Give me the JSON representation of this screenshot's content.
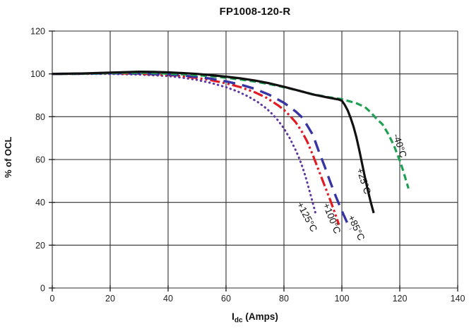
{
  "chart_data": {
    "type": "line",
    "title": "FP1008-120-R",
    "ylabel": "% of OCL",
    "xlabel_main": "I",
    "xlabel_sub": "dc",
    "xlabel_rest": " (Amps)",
    "xlim": [
      0,
      140
    ],
    "ylim": [
      0,
      120
    ],
    "xticks": [
      0,
      20,
      40,
      60,
      80,
      100,
      120,
      140
    ],
    "yticks": [
      0,
      20,
      40,
      60,
      80,
      100,
      120
    ],
    "grid": true,
    "grid_color": "#2e2e2e",
    "axis_color": "#1a1a1a",
    "tick_label_color": "#222222",
    "series": [
      {
        "id": "plus125c",
        "name": "+125°C",
        "color": "#5e35a1",
        "style": "dotted",
        "dash": "0.6 5.6",
        "linecap": "round",
        "width": 3,
        "label": {
          "text": "+125°C",
          "x": 87,
          "y": 32.5,
          "rot": 62
        },
        "points": [
          [
            0,
            100
          ],
          [
            10,
            100
          ],
          [
            20,
            100
          ],
          [
            30,
            99.7
          ],
          [
            40,
            99
          ],
          [
            45,
            98.2
          ],
          [
            50,
            97.2
          ],
          [
            55,
            95.7
          ],
          [
            60,
            93.8
          ],
          [
            64,
            91.8
          ],
          [
            68,
            89.2
          ],
          [
            71,
            86.8
          ],
          [
            74,
            83.8
          ],
          [
            76,
            81.2
          ],
          [
            78,
            78.2
          ],
          [
            80,
            74.5
          ],
          [
            82,
            70
          ],
          [
            84,
            64.5
          ],
          [
            85,
            61.5
          ],
          [
            86,
            58
          ],
          [
            87,
            54
          ],
          [
            88,
            49.5
          ],
          [
            89,
            44.5
          ],
          [
            90,
            39.5
          ],
          [
            91,
            34.5
          ]
        ]
      },
      {
        "id": "plus100c",
        "name": "+100°C",
        "color": "#e01b24",
        "style": "dash-dot-dot",
        "dash": "14 4 3 4 3 4",
        "linecap": "butt",
        "width": 3.2,
        "label": {
          "text": "+100°C",
          "x": 95.5,
          "y": 32,
          "rot": 68
        },
        "points": [
          [
            0,
            100
          ],
          [
            10,
            100.1
          ],
          [
            20,
            100.3
          ],
          [
            30,
            100.1
          ],
          [
            40,
            99.5
          ],
          [
            45,
            98.9
          ],
          [
            50,
            98.1
          ],
          [
            55,
            97
          ],
          [
            60,
            95.6
          ],
          [
            65,
            93.8
          ],
          [
            70,
            91.4
          ],
          [
            74,
            88.8
          ],
          [
            78,
            85.3
          ],
          [
            80,
            83.2
          ],
          [
            82,
            80.5
          ],
          [
            84,
            77.5
          ],
          [
            86,
            73.5
          ],
          [
            88,
            68.5
          ],
          [
            90,
            62
          ],
          [
            92,
            55
          ],
          [
            94,
            48
          ],
          [
            96,
            41
          ],
          [
            98,
            33.5
          ],
          [
            99,
            29.5
          ]
        ]
      },
      {
        "id": "plus85c",
        "name": "+85°C",
        "color": "#3734a3",
        "style": "long-dash",
        "dash": "17 10",
        "linecap": "butt",
        "width": 3.4,
        "label": {
          "text": "+85°C",
          "x": 104,
          "y": 27.5,
          "rot": 65
        },
        "points": [
          [
            0,
            100
          ],
          [
            10,
            100.1
          ],
          [
            20,
            100.3
          ],
          [
            30,
            100.2
          ],
          [
            40,
            99.7
          ],
          [
            45,
            99.2
          ],
          [
            50,
            98.6
          ],
          [
            55,
            97.7
          ],
          [
            60,
            96.5
          ],
          [
            65,
            95
          ],
          [
            70,
            93
          ],
          [
            75,
            90.2
          ],
          [
            80,
            86.5
          ],
          [
            84,
            82.5
          ],
          [
            86,
            80
          ],
          [
            88,
            76
          ],
          [
            90,
            71.5
          ],
          [
            92,
            64
          ],
          [
            94,
            57
          ],
          [
            96,
            49.5
          ],
          [
            98,
            42.5
          ],
          [
            100,
            36
          ],
          [
            102,
            30
          ],
          [
            103,
            27.5
          ]
        ]
      },
      {
        "id": "minus40c",
        "name": "-40°C",
        "color": "#20a055",
        "style": "dashed",
        "dash": "9 5",
        "linecap": "butt",
        "width": 3.2,
        "label": {
          "text": "-40°C",
          "x": 119,
          "y": 66,
          "rot": 72
        },
        "points": [
          [
            0,
            100
          ],
          [
            5,
            100
          ],
          [
            10,
            100.1
          ],
          [
            15,
            100.2
          ],
          [
            20,
            100.4
          ],
          [
            25,
            100.5
          ],
          [
            30,
            100.5
          ],
          [
            35,
            100.4
          ],
          [
            40,
            100.1
          ],
          [
            45,
            99.8
          ],
          [
            50,
            99.4
          ],
          [
            55,
            98.9
          ],
          [
            60,
            98.2
          ],
          [
            65,
            97.4
          ],
          [
            70,
            96.4
          ],
          [
            75,
            95.2
          ],
          [
            80,
            93.8
          ],
          [
            85,
            92.2
          ],
          [
            90,
            90.5
          ],
          [
            95,
            89.2
          ],
          [
            100,
            88.2
          ],
          [
            105,
            86.3
          ],
          [
            108,
            84.5
          ],
          [
            110,
            82
          ],
          [
            112,
            79
          ],
          [
            114,
            76.5
          ],
          [
            116,
            72
          ],
          [
            118,
            66.5
          ],
          [
            120,
            59.5
          ],
          [
            121,
            55.5
          ],
          [
            122,
            51
          ],
          [
            123,
            46.5
          ]
        ]
      },
      {
        "id": "plus25c",
        "name": "+25°C",
        "color": "#111111",
        "style": "solid",
        "dash": "",
        "linecap": "butt",
        "width": 3.2,
        "label": {
          "text": "+25°C",
          "x": 106.5,
          "y": 49.5,
          "rot": 72
        },
        "points": [
          [
            0,
            100
          ],
          [
            5,
            100.1
          ],
          [
            10,
            100.2
          ],
          [
            15,
            100.4
          ],
          [
            20,
            100.6
          ],
          [
            25,
            100.8
          ],
          [
            30,
            101
          ],
          [
            35,
            100.9
          ],
          [
            40,
            100.7
          ],
          [
            45,
            100.4
          ],
          [
            50,
            100
          ],
          [
            55,
            99.4
          ],
          [
            60,
            98.7
          ],
          [
            65,
            97.9
          ],
          [
            70,
            96.9
          ],
          [
            75,
            95.6
          ],
          [
            80,
            94
          ],
          [
            85,
            92.2
          ],
          [
            90,
            90.4
          ],
          [
            95,
            89
          ],
          [
            99,
            88
          ],
          [
            100,
            87.5
          ],
          [
            101,
            85.5
          ],
          [
            102,
            83
          ],
          [
            103,
            79.5
          ],
          [
            104,
            75.5
          ],
          [
            105,
            70.5
          ],
          [
            106,
            64.5
          ],
          [
            107,
            58
          ],
          [
            108,
            51.5
          ],
          [
            109,
            45.5
          ],
          [
            110,
            40
          ],
          [
            111,
            35
          ]
        ]
      }
    ]
  }
}
